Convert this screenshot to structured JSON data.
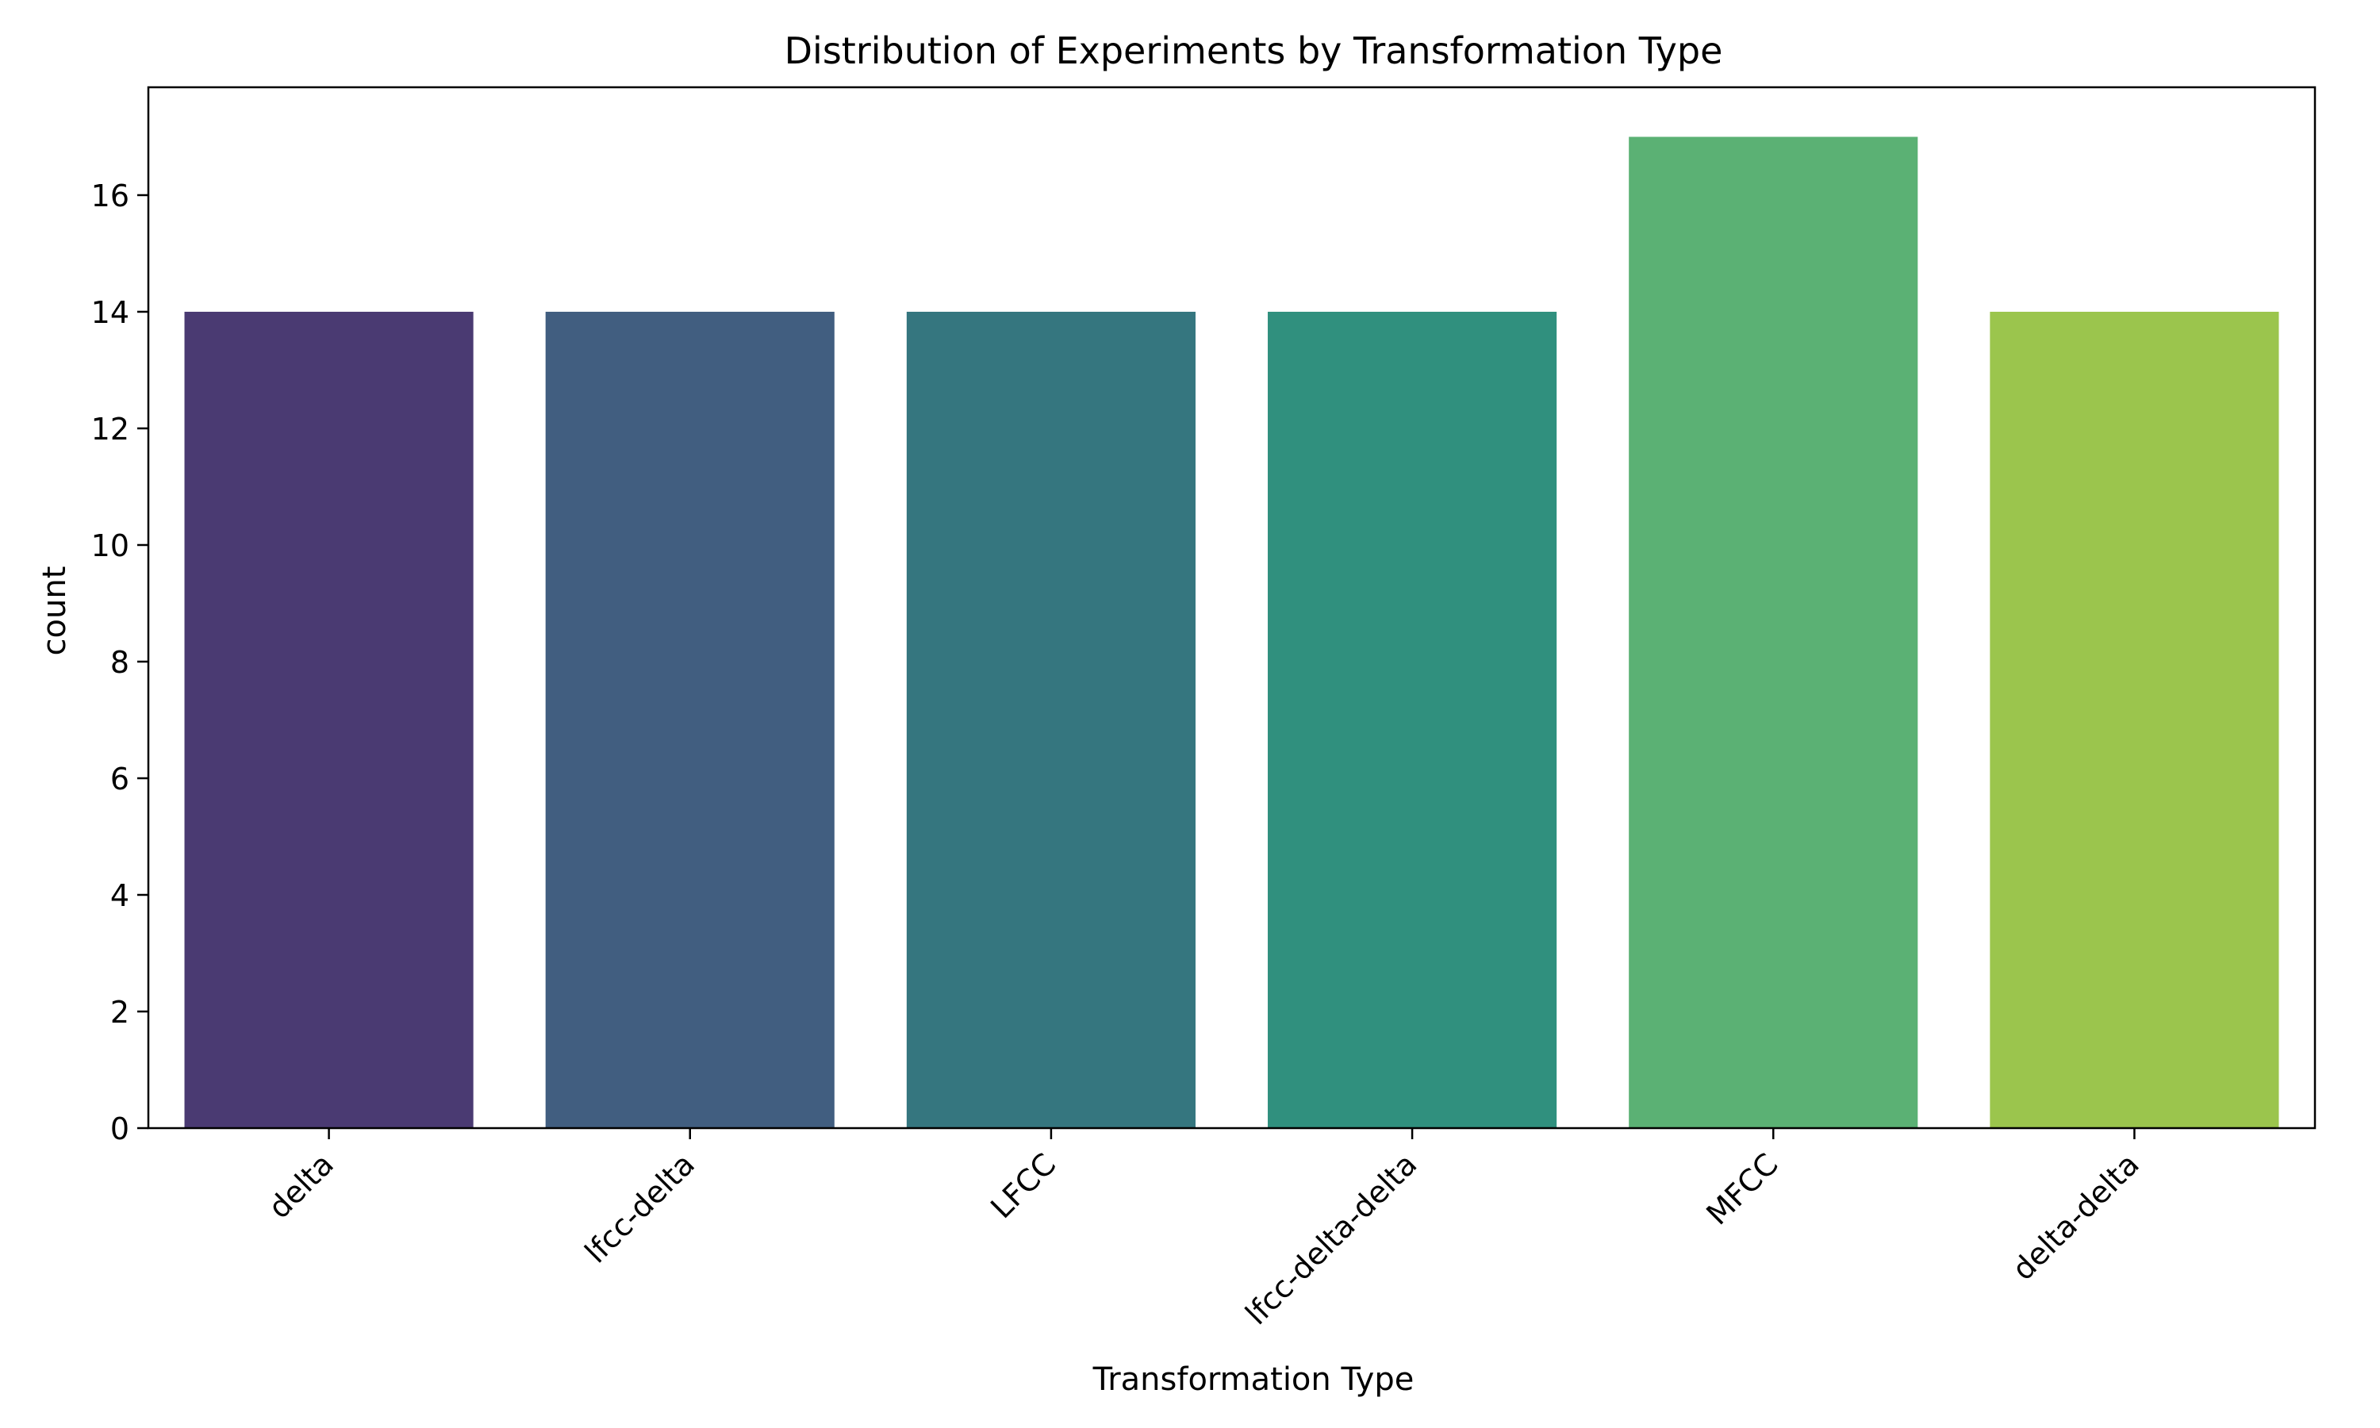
{
  "chart_data": {
    "type": "bar",
    "title": "Distribution of Experiments by Transformation Type",
    "xlabel": "Transformation Type",
    "ylabel": "count",
    "categories": [
      "delta",
      "lfcc-delta",
      "LFCC",
      "lfcc-delta-delta",
      "MFCC",
      "delta-delta"
    ],
    "values": [
      14,
      14,
      14,
      14,
      17,
      14
    ],
    "colors": [
      "#4a3a72",
      "#415e80",
      "#35767f",
      "#30907e",
      "#5bb174",
      "#9bc54d"
    ],
    "ylim": [
      0,
      17.85
    ],
    "yticks": [
      0,
      2,
      4,
      6,
      8,
      10,
      12,
      14,
      16
    ],
    "grid": false,
    "legend": "none"
  }
}
